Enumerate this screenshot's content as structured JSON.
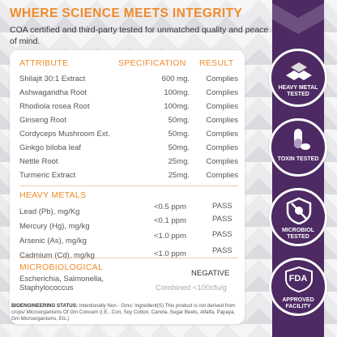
{
  "headline": "WHERE SCIENCE MEETS INTEGRITY",
  "intro": "COA certified and third-party tested for unmatched quality and peace of mind.",
  "table": {
    "headers": {
      "attribute": "ATTRIBUTE",
      "specification": "SPECIFICATION",
      "result": "RESULT"
    },
    "rows": [
      {
        "attribute": "Shilajit 30:1 Extract",
        "specification": "600 mg.",
        "result": "Complies"
      },
      {
        "attribute": "Ashwagandha Root",
        "specification": "100mg.",
        "result": "Complies"
      },
      {
        "attribute": "Rhodiola rosea Root",
        "specification": "100mg.",
        "result": "Complies"
      },
      {
        "attribute": "Ginseng Root",
        "specification": "50mg.",
        "result": "Complies"
      },
      {
        "attribute": "Cordyceps Mushroom Ext.",
        "specification": "50mg.",
        "result": "Complies"
      },
      {
        "attribute": "Ginkgo biloba leaf",
        "specification": "50mg.",
        "result": "Complies"
      },
      {
        "attribute": "Nettle Root",
        "specification": "25mg.",
        "result": "Complies"
      },
      {
        "attribute": "Turmeric Extract",
        "specification": "25mg.",
        "result": "Complies"
      }
    ]
  },
  "heavy_metals": {
    "title": "HEAVY METALS",
    "rows": [
      {
        "name": "Lead (Pb), mg/Kg",
        "limit": "<0.5 ppm",
        "result": "PASS"
      },
      {
        "name": "Mercury (Hg), mg/kg",
        "limit": "<0.1 ppm",
        "result": "PASS"
      },
      {
        "name": "Arsenic (As), mg/kg",
        "limit": "<1.0 ppm",
        "result": "PASS"
      },
      {
        "name": "Cadmium (Cd), mg/kg",
        "limit": "<1.0 ppm",
        "result": "PASS"
      }
    ]
  },
  "microbiological": {
    "title": "MICROBIOLOGICAL",
    "organisms": "Escherichia, Salmonella, Staphylococcus",
    "result": "NEGATIVE",
    "combined": "Combined <100cfu/g"
  },
  "footer": {
    "label": "BIOENGINEERING STATUS:",
    "text": "Intentionally Non - Gmo: Ingredient(S) This product is not derived from crops/ Microorganisms Of Gm Concern (I.E., Con, Soy Cotton, Canola, Sugar Beets, Alfalfa, Papaya, Gm Microorganisms, Etc.)"
  },
  "badges": [
    {
      "icon": "heavy-metal-icon",
      "label": "HEAVY METAL TESTED"
    },
    {
      "icon": "toxin-icon",
      "label": "TOXIN TESTED"
    },
    {
      "icon": "microbiol-icon",
      "label": "MICROBIOL TESTED"
    },
    {
      "icon": "fda-icon",
      "label": "APPROVED FACILITY",
      "mark": "FDA"
    }
  ],
  "colors": {
    "accent": "#f08a2a",
    "brand": "#4d2a63",
    "card": "#ffffff"
  }
}
